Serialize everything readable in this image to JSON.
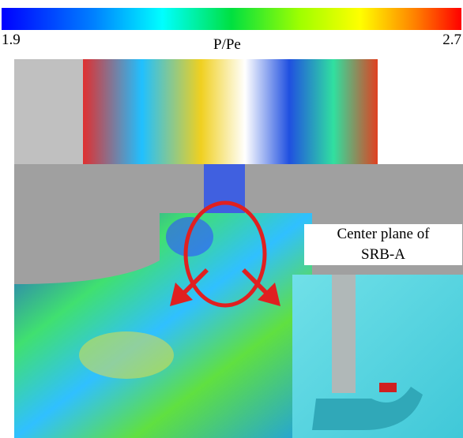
{
  "colorbar": {
    "min": 1.9,
    "max": 2.7,
    "label": "P/Pe"
  },
  "annotation": {
    "lines": [
      "Center plane of",
      "SRB-A"
    ]
  }
}
